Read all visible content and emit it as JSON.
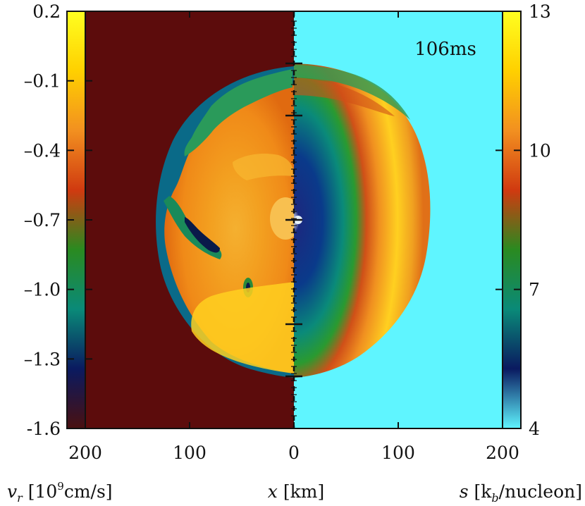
{
  "chart_data": {
    "type": "heatmap",
    "time_label": "106ms",
    "x_axis": {
      "label": "x [km]",
      "ticks": [
        {
          "value": -200,
          "label": "200"
        },
        {
          "value": -100,
          "label": "100"
        },
        {
          "value": 0,
          "label": "0"
        },
        {
          "value": 100,
          "label": "100"
        },
        {
          "value": 200,
          "label": "200"
        }
      ],
      "range": [
        -200,
        200
      ]
    },
    "left_colorbar": {
      "quantity": "v_r",
      "label_main": "v",
      "label_sub": "r",
      "label_units_pre": " [10",
      "label_units_sup": "9",
      "label_units_post": "cm/s]",
      "range": [
        -1.6,
        0.2
      ],
      "ticks": [
        "0.2",
        "–0.1",
        "–0.4",
        "–0.7",
        "–1.0",
        "–1.3",
        "-1.6"
      ],
      "tick_values": [
        0.2,
        -0.1,
        -0.4,
        -0.7,
        -1.0,
        -1.3,
        -1.6
      ],
      "colors": [
        "#ffff20",
        "#ffd000",
        "#f29020",
        "#d03a10",
        "#2a8a20",
        "#0a8a78",
        "#0a1a60",
        "#4a1010"
      ]
    },
    "right_colorbar": {
      "quantity": "s",
      "label_main": "s",
      "label_units_pre": " [k",
      "label_units_sub": "b",
      "label_units_post": "/nucleon]",
      "range": [
        4,
        13
      ],
      "ticks": [
        "13",
        "10",
        "7",
        "4"
      ],
      "tick_values": [
        13,
        10,
        7,
        4
      ],
      "colors": [
        "#ffff20",
        "#ffd000",
        "#f29020",
        "#d03a10",
        "#2a8a20",
        "#0a8a78",
        "#0a1a60",
        "#5ff5ff"
      ]
    },
    "panels": {
      "left_background": "#5c0c0c",
      "right_background": "#5ff5ff",
      "left_quantity": "v_r",
      "right_quantity": "s"
    },
    "y_inner_tick_values_km": [
      -150,
      -100,
      0,
      100,
      150
    ]
  }
}
